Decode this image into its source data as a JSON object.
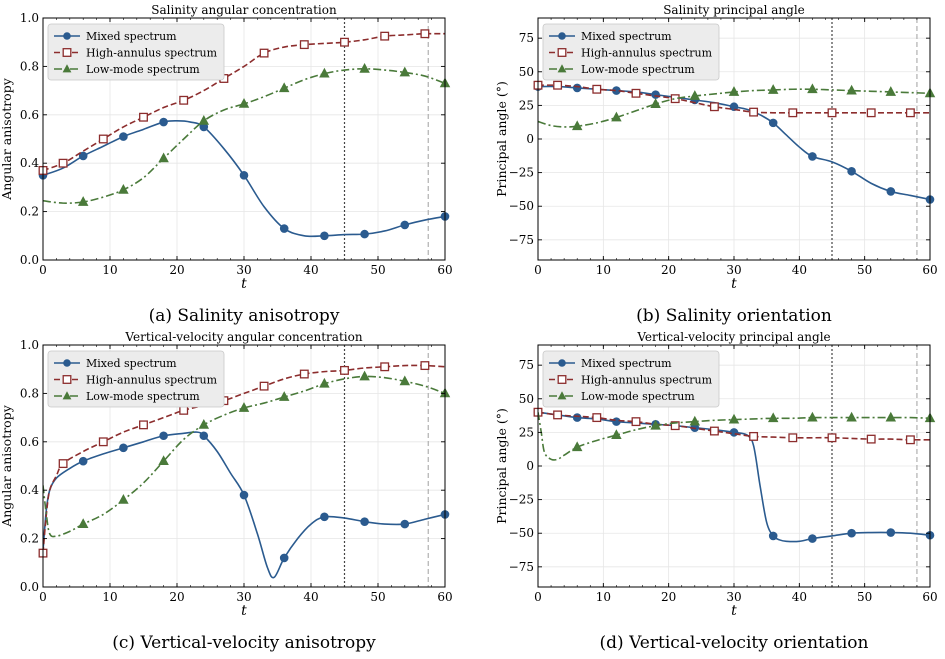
{
  "figure": {
    "colors": {
      "mixed": "#2b5b8f",
      "high": "#8c2d2d",
      "low": "#4a7a3a",
      "vline1": "#444444",
      "vline2": "#b0b0b0"
    },
    "legend": [
      "Mixed spectrum",
      "High-annulus spectrum",
      "Low-mode spectrum"
    ]
  },
  "chart_data": [
    {
      "id": "a",
      "type": "line",
      "title": "Salinity angular concentration",
      "caption": "(a) Salinity anisotropy",
      "xlabel": "t",
      "ylabel": "Angular anisotropy",
      "xlim": [
        0,
        60
      ],
      "ylim": [
        0,
        1.0
      ],
      "xticks": [
        "0",
        "10",
        "20",
        "30",
        "40",
        "50",
        "60"
      ],
      "yticks": [
        "0.0",
        "0.2",
        "0.4",
        "0.6",
        "0.8",
        "1.0"
      ],
      "ytick_values": [
        0,
        0.2,
        0.4,
        0.6,
        0.8,
        1.0
      ],
      "vlines": [
        45,
        57.5
      ],
      "grid": true,
      "legend_position": "top-left",
      "series": [
        {
          "name": "Mixed spectrum",
          "key": "mixed",
          "x": [
            0,
            3,
            6,
            9,
            12,
            15,
            18,
            20,
            22,
            24,
            27,
            30,
            33,
            36,
            39,
            42,
            45,
            48,
            51,
            54,
            57,
            60
          ],
          "y": [
            0.35,
            0.38,
            0.43,
            0.47,
            0.51,
            0.54,
            0.57,
            0.575,
            0.57,
            0.55,
            0.46,
            0.35,
            0.22,
            0.13,
            0.1,
            0.1,
            0.105,
            0.107,
            0.12,
            0.145,
            0.165,
            0.18
          ],
          "markers_x": [
            0,
            6,
            12,
            18,
            24,
            30,
            36,
            42,
            48,
            54,
            60
          ]
        },
        {
          "name": "High-annulus spectrum",
          "key": "high",
          "x": [
            0,
            3,
            6,
            9,
            12,
            15,
            18,
            21,
            24,
            27,
            30,
            33,
            36,
            39,
            42,
            45,
            48,
            51,
            54,
            57,
            60
          ],
          "y": [
            0.37,
            0.4,
            0.45,
            0.5,
            0.55,
            0.59,
            0.63,
            0.66,
            0.7,
            0.75,
            0.8,
            0.855,
            0.88,
            0.89,
            0.895,
            0.9,
            0.91,
            0.925,
            0.93,
            0.935,
            0.935
          ],
          "markers_x": [
            0,
            3,
            9,
            15,
            21,
            27,
            33,
            39,
            45,
            51,
            57
          ]
        },
        {
          "name": "Low-mode spectrum",
          "key": "low",
          "x": [
            0,
            3,
            6,
            9,
            12,
            15,
            18,
            21,
            24,
            27,
            30,
            33,
            36,
            39,
            42,
            45,
            48,
            51,
            54,
            57,
            60
          ],
          "y": [
            0.245,
            0.235,
            0.24,
            0.26,
            0.29,
            0.34,
            0.42,
            0.5,
            0.575,
            0.62,
            0.645,
            0.675,
            0.71,
            0.745,
            0.77,
            0.785,
            0.79,
            0.785,
            0.775,
            0.76,
            0.73
          ],
          "markers_x": [
            6,
            12,
            18,
            24,
            30,
            36,
            42,
            48,
            54,
            60
          ]
        }
      ]
    },
    {
      "id": "b",
      "type": "line",
      "title": "Salinity principal angle",
      "caption": "(b) Salinity orientation",
      "xlabel": "t",
      "ylabel": "Principal angle (°)",
      "xlim": [
        0,
        60
      ],
      "ylim": [
        -90,
        90
      ],
      "xticks": [
        "0",
        "10",
        "20",
        "30",
        "40",
        "50",
        "60"
      ],
      "yticks": [
        "−75",
        "−50",
        "−25",
        "0",
        "25",
        "50",
        "75"
      ],
      "ytick_values": [
        -75,
        -50,
        -25,
        0,
        25,
        50,
        75
      ],
      "vlines": [
        45,
        58
      ],
      "grid": true,
      "legend_position": "top-left",
      "series": [
        {
          "name": "Mixed spectrum",
          "key": "mixed",
          "x": [
            0,
            3,
            6,
            9,
            12,
            15,
            18,
            21,
            24,
            27,
            30,
            32,
            34,
            36,
            38,
            40,
            42,
            45,
            48,
            51,
            54,
            57,
            60
          ],
          "y": [
            39,
            39,
            38,
            37,
            36,
            35,
            33,
            31,
            29,
            27,
            24,
            22,
            18,
            12,
            3,
            -6,
            -13,
            -17,
            -24,
            -33,
            -39,
            -42,
            -45
          ],
          "markers_x": [
            0,
            6,
            12,
            18,
            24,
            30,
            36,
            42,
            48,
            54,
            60
          ]
        },
        {
          "name": "High-annulus spectrum",
          "key": "high",
          "x": [
            0,
            3,
            6,
            9,
            12,
            15,
            18,
            21,
            24,
            27,
            30,
            33,
            36,
            39,
            42,
            45,
            48,
            51,
            54,
            57,
            60
          ],
          "y": [
            40,
            40,
            39,
            37,
            36,
            34,
            32,
            30,
            27,
            24,
            22,
            20,
            19.5,
            19.5,
            19.5,
            19.5,
            19.5,
            19.5,
            19.5,
            19.5,
            19.5
          ],
          "markers_x": [
            0,
            3,
            9,
            15,
            21,
            27,
            33,
            39,
            45,
            51,
            57
          ]
        },
        {
          "name": "Low-mode spectrum",
          "key": "low",
          "x": [
            0,
            2,
            4,
            6,
            9,
            12,
            15,
            18,
            21,
            24,
            27,
            30,
            33,
            36,
            39,
            42,
            45,
            48,
            51,
            54,
            57,
            60
          ],
          "y": [
            13,
            10,
            9,
            9.5,
            12,
            16,
            21,
            26,
            30,
            32,
            33.5,
            35,
            36,
            36.5,
            37,
            37,
            36.5,
            36,
            35.5,
            35,
            34.5,
            34
          ],
          "markers_x": [
            6,
            12,
            18,
            24,
            30,
            36,
            42,
            48,
            54,
            60
          ]
        }
      ]
    },
    {
      "id": "c",
      "type": "line",
      "title": "Vertical-velocity angular concentration",
      "caption": "(c) Vertical-velocity anisotropy",
      "xlabel": "t",
      "ylabel": "Angular anisotropy",
      "xlim": [
        0,
        60
      ],
      "ylim": [
        0,
        1.0
      ],
      "xticks": [
        "0",
        "10",
        "20",
        "30",
        "40",
        "50",
        "60"
      ],
      "yticks": [
        "0.0",
        "0.2",
        "0.4",
        "0.6",
        "0.8",
        "1.0"
      ],
      "ytick_values": [
        0,
        0.2,
        0.4,
        0.6,
        0.8,
        1.0
      ],
      "vlines": [
        45,
        57.5
      ],
      "grid": true,
      "legend_position": "top-left",
      "series": [
        {
          "name": "Mixed spectrum",
          "key": "mixed",
          "x": [
            0,
            0.5,
            1,
            2,
            4,
            6,
            9,
            12,
            15,
            18,
            21,
            23,
            24,
            26,
            28,
            30,
            32,
            33.5,
            34.5,
            36,
            38,
            40,
            42,
            45,
            48,
            51,
            54,
            57,
            60
          ],
          "y": [
            0.15,
            0.32,
            0.4,
            0.45,
            0.49,
            0.52,
            0.55,
            0.575,
            0.6,
            0.625,
            0.635,
            0.64,
            0.625,
            0.56,
            0.47,
            0.38,
            0.22,
            0.08,
            0.04,
            0.12,
            0.2,
            0.26,
            0.29,
            0.285,
            0.27,
            0.26,
            0.26,
            0.28,
            0.3
          ],
          "markers_x": [
            6,
            12,
            18,
            24,
            30,
            36,
            42,
            48,
            54,
            60
          ]
        },
        {
          "name": "High-annulus spectrum",
          "key": "high",
          "x": [
            0,
            0.5,
            1,
            2,
            3,
            6,
            9,
            12,
            15,
            18,
            21,
            24,
            27,
            30,
            33,
            36,
            39,
            42,
            45,
            48,
            51,
            54,
            57,
            60
          ],
          "y": [
            0.14,
            0.3,
            0.4,
            0.46,
            0.51,
            0.56,
            0.6,
            0.64,
            0.67,
            0.7,
            0.73,
            0.75,
            0.77,
            0.8,
            0.83,
            0.86,
            0.88,
            0.89,
            0.895,
            0.905,
            0.91,
            0.915,
            0.915,
            0.91
          ],
          "markers_x": [
            0,
            3,
            9,
            15,
            21,
            27,
            33,
            39,
            45,
            51,
            57
          ]
        },
        {
          "name": "Low-mode spectrum",
          "key": "low",
          "x": [
            0,
            0.5,
            1,
            2,
            4,
            6,
            9,
            12,
            15,
            18,
            21,
            24,
            27,
            30,
            33,
            36,
            39,
            42,
            45,
            48,
            51,
            54,
            57,
            60
          ],
          "y": [
            0.42,
            0.3,
            0.22,
            0.21,
            0.23,
            0.26,
            0.3,
            0.36,
            0.43,
            0.52,
            0.61,
            0.67,
            0.71,
            0.74,
            0.76,
            0.785,
            0.81,
            0.84,
            0.86,
            0.87,
            0.865,
            0.85,
            0.83,
            0.8
          ],
          "markers_x": [
            6,
            12,
            18,
            24,
            30,
            36,
            42,
            48,
            54,
            60
          ]
        }
      ]
    },
    {
      "id": "d",
      "type": "line",
      "title": "Vertical-velocity principal angle",
      "caption": "(d) Vertical-velocity orientation",
      "xlabel": "t",
      "ylabel": "Principal angle (°)",
      "xlim": [
        0,
        60
      ],
      "ylim": [
        -90,
        90
      ],
      "xticks": [
        "0",
        "10",
        "20",
        "30",
        "40",
        "50",
        "60"
      ],
      "yticks": [
        "−75",
        "−50",
        "−25",
        "0",
        "25",
        "50",
        "75"
      ],
      "ytick_values": [
        -75,
        -50,
        -25,
        0,
        25,
        50,
        75
      ],
      "vlines": [
        45,
        58
      ],
      "grid": true,
      "legend_position": "top-left",
      "series": [
        {
          "name": "Mixed spectrum",
          "key": "mixed",
          "x": [
            0,
            3,
            6,
            9,
            12,
            15,
            18,
            21,
            24,
            27,
            30,
            32,
            33,
            34,
            35,
            36,
            37,
            38,
            40,
            42,
            45,
            48,
            51,
            54,
            57,
            60
          ],
          "y": [
            40,
            38,
            36,
            35,
            33,
            32,
            31,
            30,
            28.5,
            27,
            25,
            23,
            15,
            -15,
            -42,
            -52,
            -55,
            -56,
            -56,
            -54,
            -52,
            -50,
            -49.5,
            -49.5,
            -50,
            -51.5
          ],
          "markers_x": [
            0,
            6,
            12,
            18,
            24,
            30,
            36,
            42,
            48,
            54,
            60
          ]
        },
        {
          "name": "High-annulus spectrum",
          "key": "high",
          "x": [
            0,
            3,
            6,
            9,
            12,
            15,
            18,
            21,
            24,
            27,
            30,
            33,
            36,
            39,
            42,
            45,
            48,
            51,
            54,
            57,
            60
          ],
          "y": [
            40,
            38,
            37,
            36,
            34,
            33,
            31,
            30,
            28,
            26,
            24,
            22,
            21.5,
            21,
            21,
            21,
            20.5,
            20,
            20,
            19.5,
            19.5
          ],
          "markers_x": [
            0,
            3,
            9,
            15,
            21,
            27,
            33,
            39,
            45,
            51,
            57
          ]
        },
        {
          "name": "Low-mode spectrum",
          "key": "low",
          "x": [
            0,
            0.5,
            1,
            2,
            3,
            4,
            6,
            9,
            12,
            15,
            18,
            21,
            24,
            27,
            30,
            33,
            36,
            39,
            42,
            45,
            48,
            51,
            54,
            57,
            60
          ],
          "y": [
            40,
            25,
            10,
            5,
            5,
            8,
            14,
            19,
            23,
            27,
            30,
            32,
            33,
            34,
            34.5,
            35,
            35.5,
            35.5,
            36,
            36,
            36,
            36,
            36,
            36,
            35.5
          ],
          "markers_x": [
            6,
            12,
            18,
            24,
            30,
            36,
            42,
            48,
            54,
            60
          ]
        }
      ]
    }
  ]
}
